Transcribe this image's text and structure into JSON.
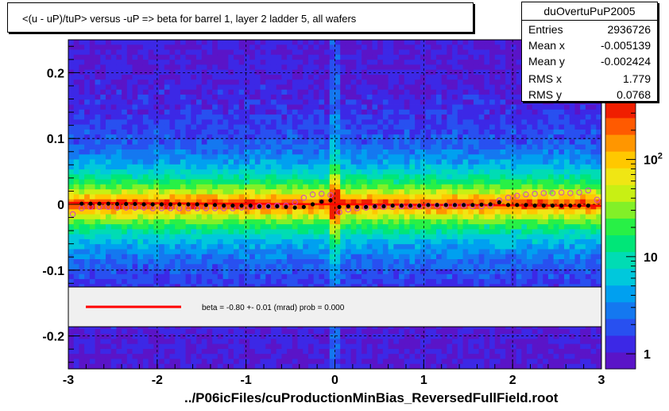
{
  "title": "<(u - uP)/tuP>  versus  -uP => beta for barrel 1, layer 2 ladder 5, all wafers",
  "stats": {
    "name": "duOvertuPuP2005",
    "rows": [
      {
        "label": "Entries",
        "value": "2936726"
      },
      {
        "label": "Mean x",
        "value": "-0.005139"
      },
      {
        "label": "Mean y",
        "value": "-0.002424"
      },
      {
        "label": "RMS x",
        "value": "1.779"
      },
      {
        "label": "RMS y",
        "value": "0.0768"
      }
    ]
  },
  "legend_text": "beta =   -0.80 +-  0.01 (mrad) prob = 0.000",
  "footer": "../P06icFiles/cuProductionMinBias_ReversedFullField.root",
  "colors": {
    "fit_line": "#ff0000",
    "black_markers": "#000000",
    "open_markers": "#cc44cc",
    "grid": "#000000"
  },
  "chart_data": {
    "type": "heatmap",
    "xlim": [
      -3,
      3
    ],
    "ylim": [
      -0.25,
      0.25
    ],
    "x_ticks": [
      {
        "v": -3,
        "label": "-3"
      },
      {
        "v": -2,
        "label": "-2"
      },
      {
        "v": -1,
        "label": "-1"
      },
      {
        "v": 0,
        "label": "0"
      },
      {
        "v": 1,
        "label": "1"
      },
      {
        "v": 2,
        "label": "2"
      },
      {
        "v": 3,
        "label": "3"
      }
    ],
    "y_ticks": [
      {
        "v": 0.2,
        "label": "0.2"
      },
      {
        "v": 0.1,
        "label": "0.1"
      },
      {
        "v": 0,
        "label": "0"
      },
      {
        "v": -0.1,
        "label": "-0.1"
      },
      {
        "v": -0.2,
        "label": "-0.2"
      }
    ],
    "grid": true,
    "colorbar": {
      "scale": "log",
      "range": [
        0.7,
        400
      ],
      "ticks": [
        {
          "v": 1,
          "label": "1"
        },
        {
          "v": 10,
          "label": "10"
        },
        {
          "v": 100,
          "label": "10",
          "sup": "2"
        }
      ]
    },
    "fit": {
      "x": [
        -3,
        3
      ],
      "y": [
        0.0024,
        -0.0024
      ]
    },
    "profile_mean": {
      "x": [
        -2.85,
        -2.75,
        -2.65,
        -2.55,
        -2.45,
        -2.35,
        -2.25,
        -2.15,
        -2.05,
        -1.95,
        -1.85,
        -1.75,
        -1.65,
        -1.55,
        -1.45,
        -1.35,
        -1.25,
        -1.15,
        -1.05,
        -0.95,
        -0.85,
        -0.75,
        -0.65,
        -0.55,
        -0.45,
        -0.35,
        -0.25,
        -0.15,
        -0.05,
        0.05,
        0.15,
        0.25,
        0.35,
        0.45,
        0.55,
        0.65,
        0.75,
        0.85,
        0.95,
        1.05,
        1.15,
        1.25,
        1.35,
        1.45,
        1.55,
        1.65,
        1.75,
        1.85,
        1.95,
        2.05,
        2.15,
        2.25,
        2.35,
        2.45,
        2.55,
        2.65,
        2.75,
        2.85
      ],
      "y": [
        0.001,
        0.001,
        0.001,
        0.001,
        0.0005,
        0.0005,
        0.0005,
        0.0,
        0.0,
        0.0,
        0.0,
        0.0,
        0.0,
        0.0,
        -0.001,
        -0.001,
        -0.002,
        -0.002,
        -0.002,
        -0.002,
        -0.003,
        -0.003,
        -0.003,
        -0.004,
        -0.005,
        -0.004,
        0.0,
        0.004,
        0.006,
        -0.004,
        -0.003,
        -0.004,
        -0.004,
        -0.003,
        -0.003,
        -0.002,
        -0.002,
        -0.002,
        -0.002,
        -0.001,
        -0.001,
        -0.001,
        -0.001,
        -0.001,
        -0.001,
        -0.0005,
        0.0,
        0.003,
        -0.001,
        -0.001,
        -0.001,
        -0.002,
        -0.002,
        -0.002,
        -0.002,
        -0.002,
        -0.002,
        -0.002
      ]
    },
    "profile_alt": {
      "x": [
        -2.95,
        -2.85,
        -2.75,
        -2.65,
        -2.55,
        -2.45,
        -2.35,
        -2.25,
        -2.15,
        -2.05,
        -1.95,
        -1.85,
        -1.75,
        -1.65,
        -1.55,
        -1.45,
        -1.35,
        -1.25,
        -1.15,
        -1.05,
        -0.95,
        -0.85,
        -0.75,
        -0.65,
        -0.55,
        -0.45,
        -0.35,
        -0.25,
        -0.15,
        -0.05,
        0.05,
        0.15,
        0.25,
        0.35,
        0.45,
        0.55,
        0.65,
        0.75,
        0.85,
        0.95,
        1.05,
        1.15,
        1.25,
        1.35,
        1.45,
        1.55,
        1.65,
        1.75,
        1.85,
        1.95,
        2.05,
        2.15,
        2.25,
        2.35,
        2.45,
        2.55,
        2.65,
        2.75,
        2.85,
        2.95
      ],
      "y": [
        -0.015,
        -0.006,
        -0.004,
        -0.004,
        -0.004,
        -0.005,
        -0.005,
        -0.005,
        -0.005,
        -0.006,
        -0.006,
        -0.006,
        -0.006,
        -0.006,
        -0.006,
        -0.006,
        -0.006,
        -0.006,
        -0.006,
        -0.005,
        -0.004,
        -0.003,
        -0.003,
        -0.002,
        -0.002,
        0.003,
        0.01,
        0.015,
        0.016,
        0.014,
        -0.012,
        -0.008,
        -0.006,
        -0.005,
        -0.004,
        -0.004,
        -0.004,
        -0.003,
        -0.003,
        -0.003,
        -0.002,
        -0.002,
        -0.002,
        -0.002,
        -0.002,
        -0.003,
        -0.003,
        -0.002,
        0.006,
        0.01,
        0.013,
        0.015,
        0.016,
        0.017,
        0.017,
        0.018,
        0.017,
        0.018,
        0.021,
        0.007
      ]
    }
  }
}
